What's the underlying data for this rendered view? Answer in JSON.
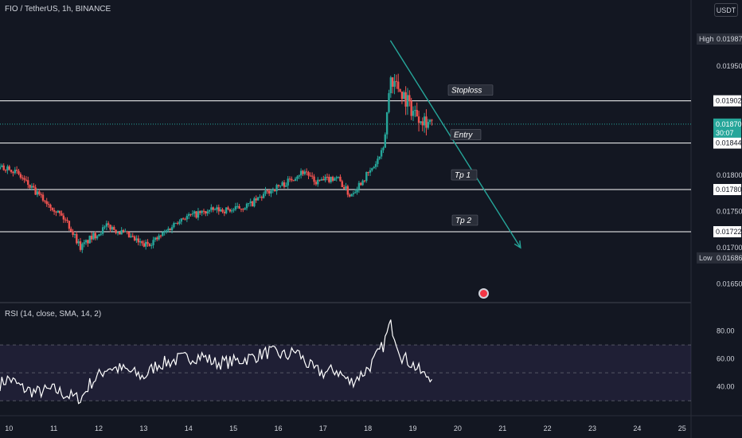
{
  "header": {
    "symbol_info": "FIO / TetherUS, 1h, BINANCE",
    "currency_button": "USDT"
  },
  "rsi_panel": {
    "label": "RSI (14, close, SMA, 14, 2)",
    "levels": [
      "80.00",
      "60.00",
      "40.00"
    ]
  },
  "price_axis": {
    "ticks": [
      "0.01950",
      "0.01800",
      "0.01750",
      "0.01700",
      "0.01650"
    ],
    "high": {
      "label": "High",
      "value": "0.01987"
    },
    "low": {
      "label": "Low",
      "value": "0.01686"
    },
    "current": {
      "value": "0.01870",
      "countdown": "30:07"
    }
  },
  "time_axis": {
    "ticks": [
      "10",
      "11",
      "12",
      "13",
      "14",
      "15",
      "16",
      "17",
      "18",
      "19",
      "20",
      "21",
      "22",
      "23",
      "24",
      "25"
    ]
  },
  "annotations": [
    {
      "label": "Stoploss",
      "price": 0.01902,
      "price_label": "0.01902"
    },
    {
      "label": "Entry",
      "price": 0.01844,
      "price_label": "0.01844"
    },
    {
      "label": "Tp 1",
      "price": 0.0178,
      "price_label": "0.01780"
    },
    {
      "label": "Tp 2",
      "price": 0.01722,
      "price_label": "0.01722"
    }
  ],
  "colors": {
    "background": "#131722",
    "up": "#26a69a",
    "down": "#ef5350",
    "text": "#d1d4dc",
    "grid": "#2a2e39",
    "trend_arrow": "#26a69a",
    "rsi_line": "#ffffff",
    "rsi_band": "#7e57c2",
    "current_price_bg": "#26a69a"
  },
  "chart_data": {
    "type": "candlestick",
    "title": "FIO / TetherUS, 1h, BINANCE",
    "ylim": [
      0.0163,
      0.0201
    ],
    "x_range_days": [
      9.8,
      25.2
    ],
    "x_ticks": [
      10,
      11,
      12,
      13,
      14,
      15,
      16,
      17,
      18,
      19,
      20,
      21,
      22,
      23,
      24,
      25
    ],
    "price_path": [
      [
        9.8,
        0.01808
      ],
      [
        10.0,
        0.01812
      ],
      [
        10.3,
        0.01795
      ],
      [
        10.6,
        0.01775
      ],
      [
        11.0,
        0.01755
      ],
      [
        11.3,
        0.01735
      ],
      [
        11.6,
        0.017
      ],
      [
        11.8,
        0.01712
      ],
      [
        12.2,
        0.0173
      ],
      [
        12.6,
        0.01718
      ],
      [
        13.0,
        0.01703
      ],
      [
        13.3,
        0.01712
      ],
      [
        13.6,
        0.01728
      ],
      [
        13.8,
        0.0174
      ],
      [
        14.3,
        0.01748
      ],
      [
        14.6,
        0.01752
      ],
      [
        15.0,
        0.01752
      ],
      [
        15.4,
        0.0176
      ],
      [
        15.8,
        0.01778
      ],
      [
        16.2,
        0.0179
      ],
      [
        16.4,
        0.018
      ],
      [
        16.6,
        0.01806
      ],
      [
        16.8,
        0.0179
      ],
      [
        17.0,
        0.01792
      ],
      [
        17.3,
        0.01798
      ],
      [
        17.6,
        0.01772
      ],
      [
        17.9,
        0.01795
      ],
      [
        18.1,
        0.01808
      ],
      [
        18.35,
        0.01835
      ],
      [
        18.5,
        0.01935
      ],
      [
        18.75,
        0.01915
      ],
      [
        19.0,
        0.01888
      ],
      [
        19.25,
        0.01878
      ],
      [
        19.45,
        0.0187
      ]
    ],
    "trend_arrow": {
      "from": [
        18.5,
        0.01985
      ],
      "to": [
        21.4,
        0.017
      ]
    },
    "rsi": {
      "ylim": [
        25,
        90
      ],
      "upper_band": 70,
      "lower_band": 30,
      "mid": 50,
      "path": [
        [
          9.8,
          42
        ],
        [
          10.0,
          46
        ],
        [
          10.3,
          39
        ],
        [
          10.6,
          36
        ],
        [
          11.0,
          38
        ],
        [
          11.3,
          34
        ],
        [
          11.6,
          31
        ],
        [
          11.8,
          42
        ],
        [
          12.2,
          54
        ],
        [
          12.6,
          52
        ],
        [
          13.0,
          47
        ],
        [
          13.3,
          56
        ],
        [
          13.6,
          58
        ],
        [
          13.8,
          60
        ],
        [
          14.3,
          62
        ],
        [
          14.6,
          57
        ],
        [
          15.0,
          58
        ],
        [
          15.4,
          61
        ],
        [
          15.8,
          65
        ],
        [
          16.2,
          62
        ],
        [
          16.4,
          66
        ],
        [
          16.6,
          58
        ],
        [
          16.8,
          52
        ],
        [
          17.0,
          50
        ],
        [
          17.3,
          52
        ],
        [
          17.6,
          43
        ],
        [
          17.9,
          50
        ],
        [
          18.1,
          57
        ],
        [
          18.35,
          70
        ],
        [
          18.5,
          86
        ],
        [
          18.75,
          62
        ],
        [
          19.0,
          56
        ],
        [
          19.25,
          48
        ],
        [
          19.45,
          48
        ]
      ]
    }
  }
}
